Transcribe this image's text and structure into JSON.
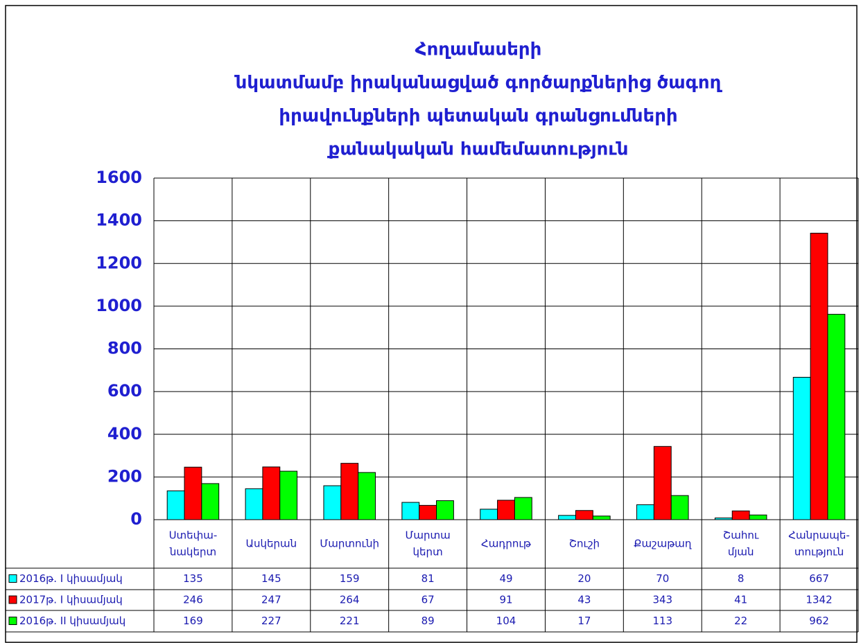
{
  "chart_data": {
    "type": "bar",
    "title": [
      "Հողամասերի",
      "նկատմամբ իրականացված գործարքներից ծագող",
      "իրավունքների պետական գրանցումների",
      "քանակական համեմատություն"
    ],
    "categories": [
      [
        "Ստեփա-",
        "նակերտ"
      ],
      [
        "Ասկերան"
      ],
      [
        "Մարտունի"
      ],
      [
        "Մարտա",
        "կերտ"
      ],
      [
        "Հադրութ"
      ],
      [
        "Շուշի"
      ],
      [
        "Քաշաթաղ"
      ],
      [
        "Շահու",
        "մյան"
      ],
      [
        "Հանրապե-",
        "տություն"
      ]
    ],
    "series": [
      {
        "name": "2016թ. I կիսամյակ",
        "color": "#00ffff",
        "values": [
          135,
          145,
          159,
          81,
          49,
          20,
          70,
          8,
          667
        ]
      },
      {
        "name": "2017թ. I կիսամյակ",
        "color": "#ff0000",
        "values": [
          246,
          247,
          264,
          67,
          91,
          43,
          343,
          41,
          1342
        ]
      },
      {
        "name": "2016թ. II կիսամյակ",
        "color": "#00ff00",
        "values": [
          169,
          227,
          221,
          89,
          104,
          17,
          113,
          22,
          962
        ]
      }
    ],
    "ylim": [
      0,
      1600
    ],
    "yticks": [
      0,
      200,
      400,
      600,
      800,
      1000,
      1200,
      1400,
      1600
    ],
    "grid": true
  }
}
